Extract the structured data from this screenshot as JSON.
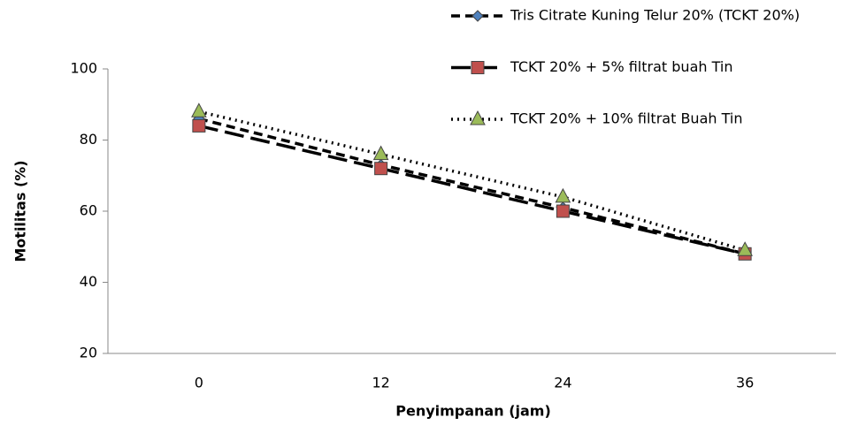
{
  "chart_data": {
    "type": "line",
    "categories": [
      "0",
      "12",
      "24",
      "36"
    ],
    "x_label": "Penyimpanan (jam)",
    "y_label": "Motilitas (%)",
    "ylim": [
      20,
      100
    ],
    "yticks": [
      20,
      40,
      60,
      80,
      100
    ],
    "legend": "top-right",
    "series": [
      {
        "name": "Tris Citrate Kuning Telur 20% (TCKT 20%)",
        "color": "#4f81bd",
        "marker": "diamond",
        "dash": "10,6",
        "values": [
          86,
          73,
          61,
          48
        ]
      },
      {
        "name": "TCKT 20% + 5% filtrat buah Tin",
        "color": "#c0504d",
        "marker": "square",
        "dash": "22,8",
        "values": [
          84,
          72,
          60,
          48
        ]
      },
      {
        "name": "TCKT 20% + 10% filtrat Buah Tin",
        "color": "#9bbb59",
        "marker": "triangle",
        "dash": "2,5",
        "values": [
          88,
          76,
          64,
          49
        ]
      }
    ]
  }
}
